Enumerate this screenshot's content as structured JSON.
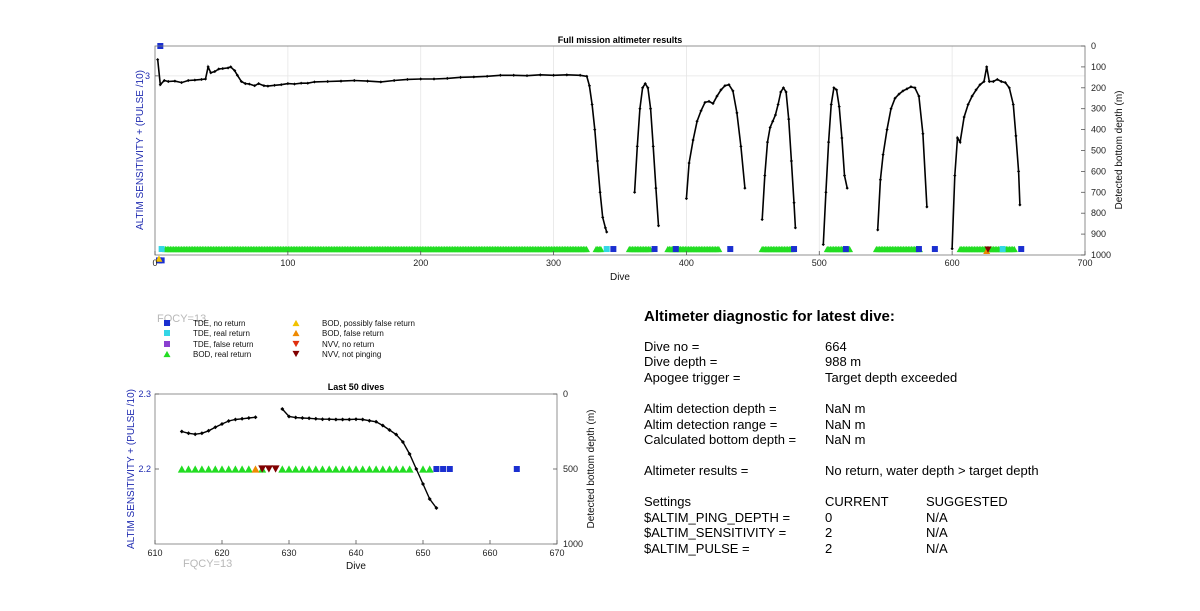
{
  "chart_data": [
    {
      "type": "line",
      "title": "Full mission altimeter results",
      "xlabel": "Dive",
      "ylabel_left": "ALTIM SENSITIVITY + (PULSE /10)",
      "ylabel_right": "Detected bottom depth (m)",
      "xlim": [
        0,
        700
      ],
      "x_ticks": [
        "0",
        "100",
        "200",
        "300",
        "400",
        "500",
        "600",
        "700"
      ],
      "ylim_left": [
        1.5,
        3.25
      ],
      "y_ticks_left": [
        "3"
      ],
      "ylim_right": [
        0,
        1000
      ],
      "y_ticks_right": [
        "0",
        "100",
        "200",
        "300",
        "400",
        "500",
        "600",
        "700",
        "800",
        "900",
        "1000"
      ],
      "grid": true,
      "fqcy_label": "FQCY=13",
      "depth_segments": [
        [
          [
            2,
            65
          ],
          [
            4,
            185
          ],
          [
            7,
            165
          ],
          [
            10,
            170
          ],
          [
            15,
            168
          ],
          [
            20,
            175
          ],
          [
            25,
            165
          ],
          [
            30,
            163
          ],
          [
            35,
            160
          ],
          [
            38,
            158
          ],
          [
            40,
            100
          ],
          [
            42,
            128
          ],
          [
            45,
            122
          ],
          [
            48,
            110
          ],
          [
            51,
            108
          ],
          [
            55,
            105
          ],
          [
            57,
            100
          ],
          [
            60,
            118
          ],
          [
            62,
            140
          ],
          [
            65,
            170
          ],
          [
            68,
            180
          ],
          [
            71,
            182
          ],
          [
            75,
            190
          ],
          [
            78,
            180
          ],
          [
            82,
            190
          ],
          [
            85,
            192
          ],
          [
            90,
            188
          ],
          [
            95,
            185
          ],
          [
            100,
            180
          ],
          [
            105,
            182
          ],
          [
            110,
            178
          ],
          [
            115,
            178
          ],
          [
            120,
            172
          ],
          [
            130,
            170
          ],
          [
            140,
            168
          ],
          [
            150,
            165
          ],
          [
            160,
            168
          ],
          [
            170,
            172
          ],
          [
            180,
            165
          ],
          [
            190,
            160
          ],
          [
            200,
            158
          ],
          [
            210,
            158
          ],
          [
            220,
            155
          ],
          [
            230,
            150
          ],
          [
            240,
            148
          ],
          [
            250,
            145
          ],
          [
            260,
            140
          ],
          [
            270,
            140
          ],
          [
            280,
            142
          ],
          [
            290,
            138
          ],
          [
            300,
            140
          ],
          [
            310,
            138
          ],
          [
            320,
            140
          ],
          [
            325,
            145
          ],
          [
            327,
            190
          ],
          [
            329,
            280
          ],
          [
            331,
            400
          ],
          [
            333,
            550
          ],
          [
            335,
            700
          ],
          [
            337,
            820
          ],
          [
            339,
            870
          ],
          [
            340,
            890
          ]
        ],
        [
          [
            361,
            700
          ],
          [
            363,
            480
          ],
          [
            365,
            300
          ],
          [
            367,
            200
          ],
          [
            369,
            180
          ],
          [
            371,
            200
          ],
          [
            373,
            300
          ],
          [
            375,
            480
          ],
          [
            377,
            680
          ],
          [
            379,
            860
          ]
        ],
        [
          [
            400,
            730
          ],
          [
            402,
            560
          ],
          [
            405,
            450
          ],
          [
            408,
            360
          ],
          [
            411,
            310
          ],
          [
            414,
            270
          ],
          [
            417,
            265
          ],
          [
            420,
            275
          ],
          [
            423,
            240
          ],
          [
            426,
            210
          ],
          [
            429,
            190
          ],
          [
            432,
            185
          ],
          [
            435,
            215
          ],
          [
            438,
            320
          ],
          [
            441,
            480
          ],
          [
            444,
            680
          ]
        ],
        [
          [
            457,
            830
          ],
          [
            459,
            620
          ],
          [
            461,
            460
          ],
          [
            463,
            390
          ],
          [
            465,
            360
          ],
          [
            467,
            330
          ],
          [
            469,
            280
          ],
          [
            471,
            220
          ],
          [
            473,
            200
          ],
          [
            475,
            220
          ],
          [
            477,
            350
          ],
          [
            479,
            550
          ],
          [
            481,
            750
          ],
          [
            482,
            870
          ]
        ],
        [
          [
            503,
            950
          ],
          [
            505,
            700
          ],
          [
            507,
            460
          ],
          [
            509,
            280
          ],
          [
            511,
            200
          ],
          [
            513,
            210
          ],
          [
            515,
            290
          ],
          [
            517,
            440
          ],
          [
            519,
            620
          ],
          [
            521,
            680
          ]
        ],
        [
          [
            544,
            880
          ],
          [
            546,
            640
          ],
          [
            548,
            520
          ],
          [
            551,
            400
          ],
          [
            554,
            300
          ],
          [
            557,
            250
          ],
          [
            560,
            230
          ],
          [
            563,
            215
          ],
          [
            566,
            205
          ],
          [
            569,
            195
          ],
          [
            572,
            200
          ],
          [
            575,
            240
          ],
          [
            578,
            420
          ],
          [
            581,
            770
          ]
        ],
        [
          [
            600,
            970
          ],
          [
            602,
            620
          ],
          [
            604,
            440
          ],
          [
            606,
            460
          ],
          [
            609,
            340
          ],
          [
            612,
            280
          ],
          [
            615,
            240
          ],
          [
            618,
            210
          ],
          [
            621,
            185
          ],
          [
            624,
            170
          ],
          [
            626,
            100
          ],
          [
            628,
            170
          ],
          [
            631,
            170
          ],
          [
            634,
            160
          ],
          [
            637,
            170
          ],
          [
            640,
            175
          ],
          [
            643,
            200
          ],
          [
            646,
            280
          ],
          [
            648,
            430
          ],
          [
            650,
            600
          ],
          [
            651,
            760
          ]
        ]
      ],
      "bod_real_runs": [
        [
          8,
          325
        ],
        [
          332,
          336
        ],
        [
          357,
          373
        ],
        [
          386,
          425
        ],
        [
          457,
          480
        ],
        [
          506,
          523
        ],
        [
          543,
          576
        ],
        [
          606,
          648
        ]
      ],
      "tde_no_return": [
        [
          3,
          1.455
        ],
        [
          5,
          1.455
        ],
        [
          4,
          3.25
        ],
        [
          345,
          1.55
        ],
        [
          376,
          1.55
        ],
        [
          392,
          1.55
        ],
        [
          433,
          1.55
        ],
        [
          481,
          1.55
        ],
        [
          520,
          1.55
        ],
        [
          575,
          1.55
        ],
        [
          587,
          1.55
        ],
        [
          652,
          1.55
        ]
      ],
      "tde_real_return": [
        [
          5,
          1.55
        ],
        [
          340,
          1.55
        ],
        [
          638,
          1.55
        ]
      ],
      "bod_possibly_false": [
        [
          3,
          1.47
        ]
      ],
      "nvv_not_pinging": [
        [
          627,
          1.545
        ]
      ],
      "bod_false": [
        [
          626,
          1.535
        ]
      ]
    },
    {
      "type": "line",
      "title": "Last 50 dives",
      "xlabel": "Dive",
      "ylabel_left": "ALTIM SENSITIVITY + (PULSE /10)",
      "ylabel_right": "Detected bottom depth (m)",
      "xlim": [
        610,
        670
      ],
      "x_ticks": [
        "610",
        "620",
        "630",
        "640",
        "650",
        "660",
        "670"
      ],
      "ylim_left": [
        2.1,
        2.3
      ],
      "y_ticks_left": [
        "2.2",
        "2.3"
      ],
      "ylim_right": [
        0,
        1000
      ],
      "y_ticks_right": [
        "0",
        "500",
        "1000"
      ],
      "fqcy_label": "FQCY=13",
      "depth_segments": [
        [
          [
            614,
            250
          ],
          [
            615,
            262
          ],
          [
            616,
            268
          ],
          [
            617,
            262
          ],
          [
            618,
            245
          ],
          [
            619,
            222
          ],
          [
            620,
            200
          ],
          [
            621,
            180
          ],
          [
            622,
            170
          ],
          [
            623,
            165
          ],
          [
            624,
            160
          ],
          [
            625,
            155
          ]
        ],
        [
          [
            629,
            100
          ],
          [
            630,
            150
          ],
          [
            631,
            157
          ],
          [
            632,
            160
          ],
          [
            633,
            162
          ],
          [
            634,
            165
          ],
          [
            635,
            168
          ],
          [
            636,
            168
          ],
          [
            637,
            170
          ],
          [
            638,
            170
          ],
          [
            639,
            170
          ],
          [
            640,
            168
          ],
          [
            641,
            170
          ],
          [
            642,
            178
          ],
          [
            643,
            185
          ],
          [
            644,
            210
          ],
          [
            645,
            240
          ],
          [
            646,
            270
          ],
          [
            647,
            320
          ],
          [
            648,
            400
          ],
          [
            649,
            500
          ],
          [
            650,
            600
          ],
          [
            651,
            700
          ],
          [
            652,
            760
          ]
        ]
      ],
      "bod_real": [
        614,
        615,
        616,
        617,
        618,
        619,
        620,
        621,
        622,
        623,
        624,
        626,
        629,
        630,
        631,
        632,
        633,
        634,
        635,
        636,
        637,
        638,
        639,
        640,
        641,
        642,
        643,
        644,
        645,
        646,
        647,
        648,
        650,
        651
      ],
      "bod_false": [
        625
      ],
      "nvv_not_pinging": [
        626,
        627,
        628
      ],
      "tde_no_return": [
        652,
        653,
        654,
        664
      ],
      "tde_level": 2.2
    }
  ],
  "legend": [
    {
      "label": "TDE, no return",
      "marker": "square",
      "color": "#1a2fd0"
    },
    {
      "label": "TDE, real return",
      "marker": "square",
      "color": "#33d6e6"
    },
    {
      "label": "TDE, false return",
      "marker": "square",
      "color": "#8a3fd0"
    },
    {
      "label": "BOD, real return",
      "marker": "triangle-up",
      "color": "#22dd22"
    },
    {
      "label": "BOD, possibly false return",
      "marker": "triangle-up",
      "color": "#f2c200"
    },
    {
      "label": "BOD, false return",
      "marker": "triangle-up",
      "color": "#ee8a00"
    },
    {
      "label": "NVV, no return",
      "marker": "triangle-down",
      "color": "#e03010"
    },
    {
      "label": "NVV, not pinging",
      "marker": "triangle-down",
      "color": "#800000"
    }
  ],
  "diagnostic": {
    "heading": "Altimeter diagnostic for latest dive:",
    "rows": [
      {
        "label": "Dive no =",
        "value": "664"
      },
      {
        "label": "Dive depth =",
        "value": "988 m"
      },
      {
        "label": "Apogee trigger =",
        "value": "Target depth exceeded"
      },
      {
        "label": "Altim detection depth =",
        "value": "NaN m"
      },
      {
        "label": "Altim detection range =",
        "value": "NaN m"
      },
      {
        "label": "Calculated bottom depth =",
        "value": "NaN m"
      },
      {
        "label": "Altimeter results =",
        "value": "No return, water depth > target depth"
      }
    ],
    "settings_header": {
      "label": "Settings",
      "current": "CURRENT",
      "suggested": "SUGGESTED"
    },
    "settings": [
      {
        "label": "$ALTIM_PING_DEPTH =",
        "current": "0",
        "suggested": "N/A"
      },
      {
        "label": "$ALTIM_SENSITIVITY =",
        "current": "2",
        "suggested": "N/A"
      },
      {
        "label": "$ALTIM_PULSE =",
        "current": "2",
        "suggested": "N/A"
      }
    ]
  },
  "colors": {
    "line": "#000000",
    "axis_left": "#1f2bb0",
    "grid": "#e6e6e6",
    "fqcy": "#b8b8b8"
  }
}
